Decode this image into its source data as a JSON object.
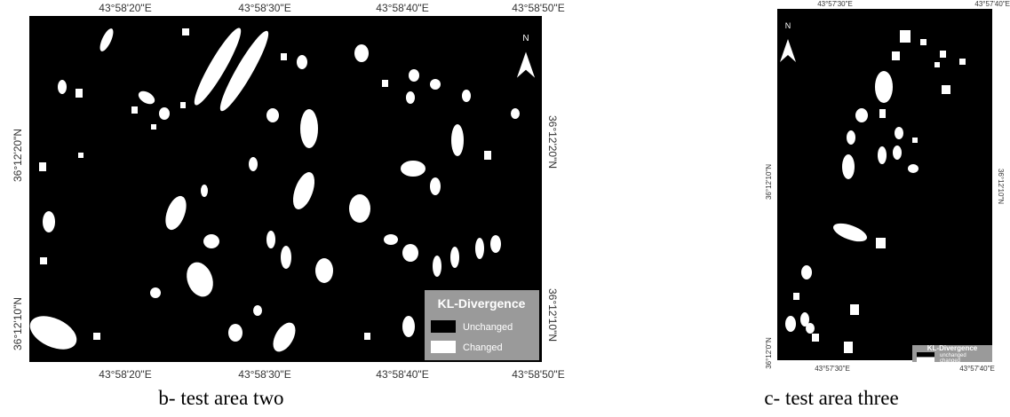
{
  "panels": [
    {
      "caption": "b- test area two",
      "top_labels": [
        "43°58'20\"E",
        "43°58'30\"E",
        "43°58'40\"E",
        "43°58'50\"E"
      ],
      "bottom_labels": [
        "43°58'20\"E",
        "43°58'30\"E",
        "43°58'40\"E",
        "43°58'50\"E"
      ],
      "left_labels": [
        "36°12'20\"N",
        "36°12'10\"N"
      ],
      "right_labels": [
        "36°12'20\"N",
        "36°12'10\"N"
      ],
      "north": "N",
      "legend": {
        "title": "KL-Divergence",
        "items": [
          "Unchanged",
          "Changed"
        ]
      }
    },
    {
      "caption": "c- test area three",
      "top_labels": [
        "43°57'30\"E",
        "43°57'40\"E"
      ],
      "bottom_labels": [
        "43°57'30\"E",
        "43°57'40\"E"
      ],
      "left_labels": [
        "36°12'10\"N",
        "36°12'0\"N"
      ],
      "right_labels": [
        "36°12'10\"N"
      ],
      "north": "N",
      "legend": {
        "title": "KL-Divergence",
        "items": [
          "unchanged",
          "changed"
        ]
      }
    }
  ]
}
